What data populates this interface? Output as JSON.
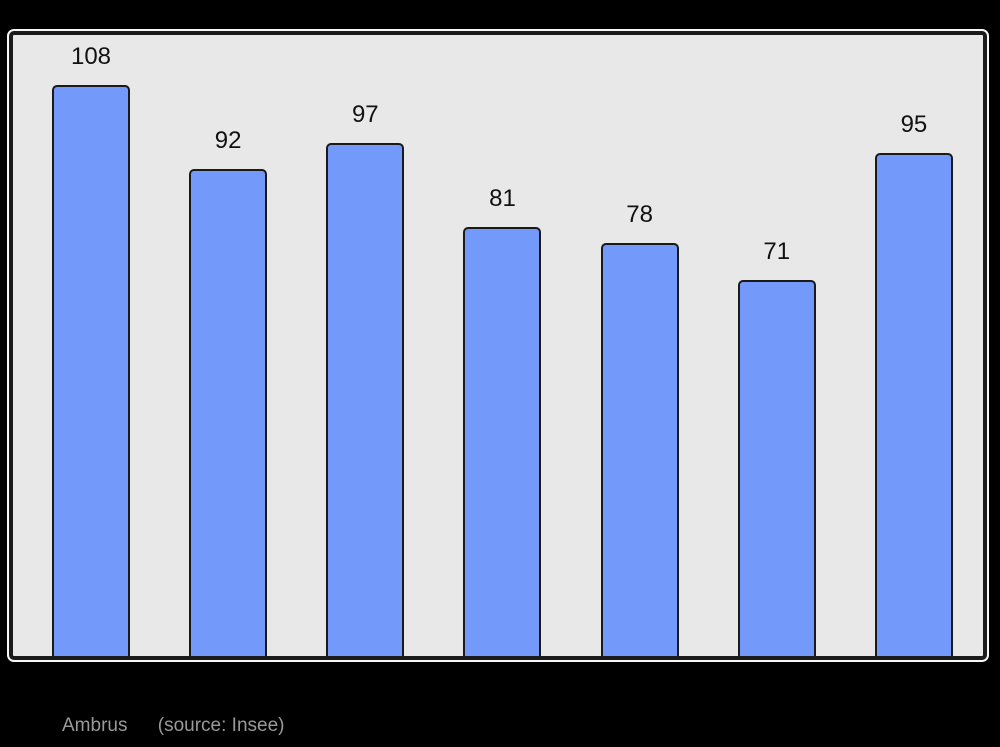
{
  "colors": {
    "page_background": "#000000",
    "panel_background": "#e8e8e8",
    "panel_border": "#1b1b1b",
    "panel_outline": "#f7f7f7",
    "bar_fill": "#7399fa",
    "bar_border": "#1a1a1a",
    "value_label": "#111111",
    "caption_text": "#999999"
  },
  "chart_data": {
    "type": "bar",
    "values": [
      108,
      92,
      97,
      81,
      78,
      71,
      95
    ],
    "value_labels_shown": true,
    "ylim": [
      0,
      118
    ],
    "grid": false,
    "legend": "none",
    "axes_labels_visible": false
  },
  "caption": {
    "title": "Ambrus",
    "source": "(source: Insee)"
  }
}
